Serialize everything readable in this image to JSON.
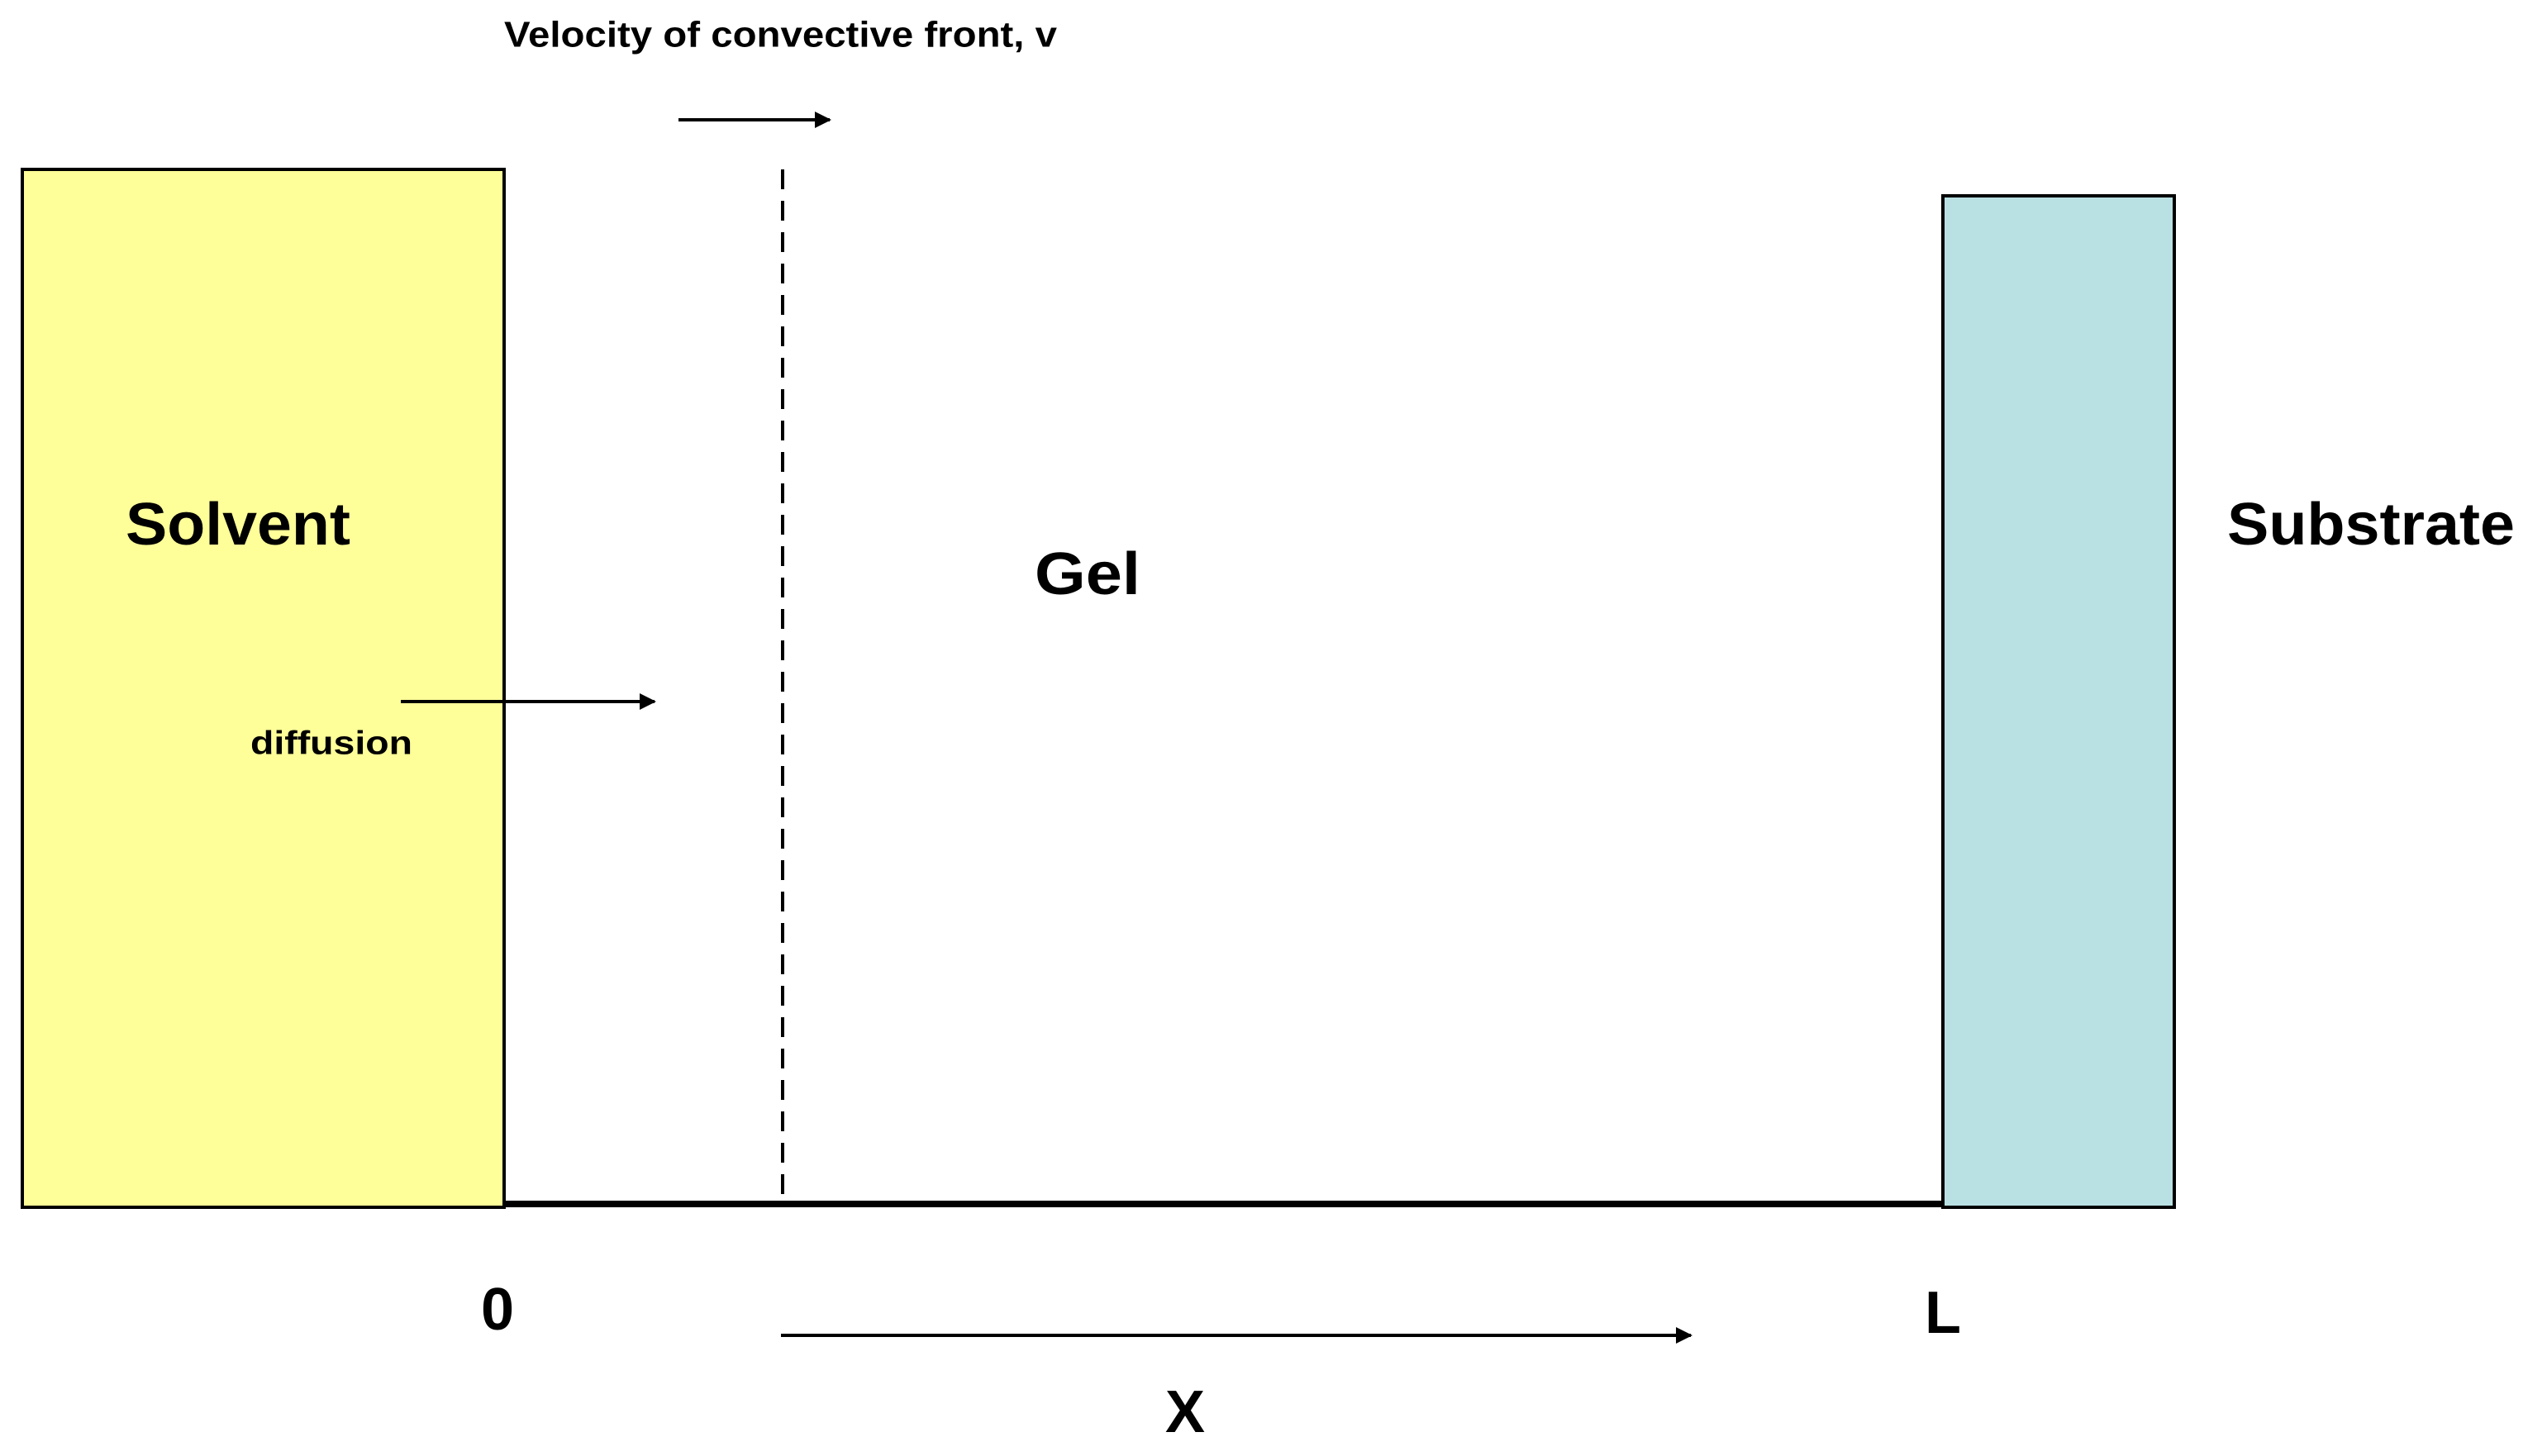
{
  "labels": {
    "velocity": "Velocity of convective front, v",
    "solvent": "Solvent",
    "diffusion": "diffusion",
    "gel": "Gel",
    "substrate": "Substrate",
    "origin": "0",
    "length": "L",
    "axis": "X"
  }
}
